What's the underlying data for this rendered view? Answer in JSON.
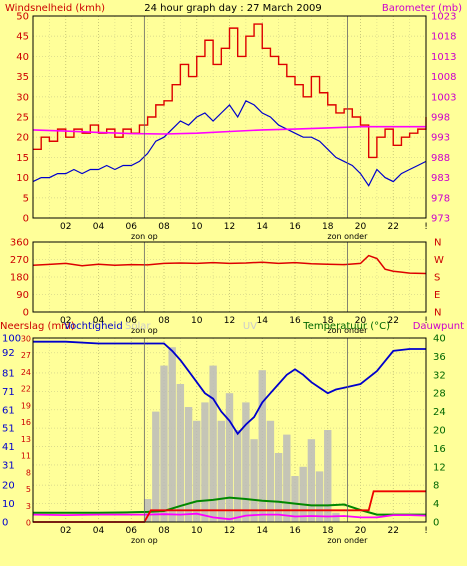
{
  "chart_data": [
    {
      "type": "line",
      "panel": "wind-barometer",
      "title": "24 hour graph day : 27 March 2009",
      "ylabel_left": "Windsnelheid (kmh)",
      "ylabel_right": "Barometer (mb)",
      "yticks_left": [
        0,
        5,
        10,
        15,
        20,
        25,
        30,
        35,
        40,
        45,
        50
      ],
      "yticks_right": [
        973,
        978,
        983,
        988,
        993,
        998,
        1003,
        1008,
        1013,
        1018,
        1023
      ],
      "ylim_left": [
        0,
        50
      ],
      "ylim_right": [
        973,
        1023
      ],
      "x_ticks": [
        "02",
        "04",
        "06",
        "08",
        "10",
        "12",
        "14",
        "16",
        "18",
        "20",
        "22",
        "!"
      ],
      "x_markers": [
        {
          "x": 6.8,
          "label": "zon op"
        },
        {
          "x": 19.2,
          "label": "zon onder"
        }
      ],
      "series": [
        {
          "key": "gust",
          "color": "#dd0000",
          "x": [
            0,
            0.5,
            1,
            1.5,
            2,
            2.5,
            3,
            3.5,
            4,
            4.5,
            5,
            5.5,
            6,
            6.5,
            7,
            7.5,
            8,
            8.5,
            9,
            9.5,
            10,
            10.5,
            11,
            11.5,
            12,
            12.5,
            13,
            13.5,
            14,
            14.5,
            15,
            15.5,
            16,
            16.5,
            17,
            17.5,
            18,
            18.5,
            19,
            19.5,
            20,
            20.5,
            21,
            21.5,
            22,
            22.5,
            23,
            23.5,
            24
          ],
          "values": [
            17,
            20,
            19,
            22,
            20,
            22,
            21,
            23,
            21,
            22,
            20,
            22,
            21,
            23,
            25,
            28,
            29,
            33,
            38,
            35,
            40,
            44,
            38,
            42,
            47,
            40,
            45,
            48,
            42,
            40,
            38,
            35,
            33,
            30,
            35,
            31,
            28,
            26,
            27,
            25,
            23,
            15,
            20,
            22,
            18,
            20,
            21,
            22,
            25
          ]
        },
        {
          "key": "average",
          "color": "#0000cc",
          "x": [
            0,
            0.5,
            1,
            1.5,
            2,
            2.5,
            3,
            3.5,
            4,
            4.5,
            5,
            5.5,
            6,
            6.5,
            7,
            7.5,
            8,
            8.5,
            9,
            9.5,
            10,
            10.5,
            11,
            11.5,
            12,
            12.5,
            13,
            13.5,
            14,
            14.5,
            15,
            15.5,
            16,
            16.5,
            17,
            17.5,
            18,
            18.5,
            19,
            19.5,
            20,
            20.5,
            21,
            21.5,
            22,
            22.5,
            23,
            23.5,
            24
          ],
          "values": [
            9,
            10,
            10,
            11,
            11,
            12,
            11,
            12,
            12,
            13,
            12,
            13,
            13,
            14,
            16,
            19,
            20,
            22,
            24,
            23,
            25,
            26,
            24,
            26,
            28,
            25,
            29,
            28,
            26,
            25,
            23,
            22,
            21,
            20,
            20,
            19,
            17,
            15,
            14,
            13,
            11,
            8,
            12,
            10,
            9,
            11,
            12,
            13,
            14
          ]
        },
        {
          "key": "barometer",
          "color": "#ff00ff",
          "axis": "right",
          "x": [
            0,
            2,
            4,
            6,
            8,
            10,
            12,
            14,
            16,
            18,
            20,
            22,
            24
          ],
          "values": [
            994.8,
            994.5,
            994.2,
            993.9,
            993.8,
            994.0,
            994.4,
            994.8,
            995.0,
            995.3,
            995.6,
            995.6,
            995.6
          ]
        }
      ]
    },
    {
      "type": "line",
      "panel": "wind-direction",
      "yticks_left": [
        0,
        90,
        180,
        270,
        360
      ],
      "yticks_right": [
        "N",
        "E",
        "S",
        "W",
        "N"
      ],
      "ylim": [
        0,
        360
      ],
      "x_ticks": [
        "02",
        "04",
        "06",
        "08",
        "10",
        "12",
        "14",
        "16",
        "18",
        "20",
        "22",
        "!"
      ],
      "x_markers": [
        {
          "x": 6.8,
          "label": "zon op"
        },
        {
          "x": 19.2,
          "label": "zon onder"
        }
      ],
      "series": [
        {
          "key": "direction",
          "color": "#dd0000",
          "x": [
            0,
            1,
            2,
            3,
            4,
            5,
            6,
            7,
            8,
            9,
            10,
            11,
            12,
            13,
            14,
            15,
            16,
            17,
            18,
            19,
            20,
            20.5,
            21,
            21.5,
            22,
            22.5,
            23,
            24
          ],
          "values": [
            240,
            245,
            250,
            238,
            246,
            240,
            244,
            242,
            250,
            252,
            250,
            254,
            250,
            252,
            256,
            250,
            254,
            248,
            246,
            244,
            250,
            290,
            275,
            220,
            210,
            205,
            200,
            198
          ]
        }
      ]
    },
    {
      "type": "line",
      "panel": "humidity-temperature",
      "labels": {
        "precip": "Neerslag (mm)",
        "humidity": "Vochtigheid",
        "solar": "Solar",
        "uv": "UV",
        "temperature": "Temperatuur (°C)",
        "dewpoint": "Dauwpunt"
      },
      "yticks_left": [
        0,
        10,
        20,
        31,
        41,
        51,
        61,
        71,
        81,
        92,
        100
      ],
      "yticks_left_inner": [
        0,
        3,
        5,
        8,
        11,
        13,
        16,
        19,
        22,
        24,
        27,
        30
      ],
      "yticks_right": [
        0,
        4,
        8,
        12,
        16,
        20,
        24,
        28,
        32,
        36,
        40
      ],
      "ylim_left": [
        0,
        100
      ],
      "ylim_right": [
        0,
        40
      ],
      "x_ticks": [
        "02",
        "04",
        "06",
        "08",
        "10",
        "12",
        "14",
        "16",
        "18",
        "20",
        "22",
        "!"
      ],
      "x_markers": [
        {
          "x": 6.8,
          "label": "zon op"
        },
        {
          "x": 19.2,
          "label": "zon onder"
        }
      ],
      "series": [
        {
          "key": "humidity",
          "color": "#0000cc",
          "axis": "left",
          "x": [
            0,
            2,
            4,
            6,
            7,
            8,
            8.5,
            9,
            9.5,
            10,
            10.5,
            11,
            11.5,
            12,
            12.5,
            13,
            13.5,
            14,
            14.5,
            15,
            15.5,
            16,
            16.5,
            17,
            17.5,
            18,
            18.5,
            19,
            20,
            21,
            22,
            23,
            24
          ],
          "values": [
            98,
            98,
            97,
            97,
            97,
            97,
            93,
            88,
            82,
            76,
            70,
            67,
            60,
            55,
            48,
            53,
            57,
            65,
            70,
            75,
            80,
            83,
            80,
            76,
            73,
            70,
            72,
            73,
            75,
            82,
            93,
            94,
            94
          ]
        },
        {
          "key": "temperature",
          "color": "#008800",
          "axis": "right",
          "x": [
            0,
            2,
            4,
            6,
            7,
            8,
            9,
            10,
            11,
            12,
            13,
            14,
            15,
            16,
            17,
            18,
            19,
            20,
            21,
            22,
            23,
            24
          ],
          "values": [
            2.0,
            2.0,
            2.0,
            2.1,
            2.2,
            2.4,
            3.5,
            4.5,
            4.8,
            5.3,
            5.0,
            4.6,
            4.4,
            4.0,
            3.6,
            3.6,
            3.8,
            2.6,
            1.6,
            1.6,
            1.6,
            1.6
          ]
        },
        {
          "key": "dewpoint",
          "color": "#ff00ff",
          "axis": "right",
          "x": [
            0,
            2,
            4,
            6,
            7,
            8,
            9,
            10,
            11,
            12,
            13,
            14,
            15,
            16,
            17,
            18,
            19,
            20,
            21,
            22,
            23,
            24
          ],
          "values": [
            1.6,
            1.5,
            1.6,
            1.6,
            1.6,
            1.7,
            1.6,
            1.8,
            1.0,
            0.6,
            1.4,
            1.6,
            1.6,
            1.2,
            1.3,
            1.2,
            1.3,
            1.0,
            1.0,
            1.5,
            1.5,
            1.4
          ]
        },
        {
          "key": "precip",
          "color": "#ee0000",
          "axis": "left_inner",
          "x": [
            0,
            6.8,
            7.2,
            20.5,
            20.8,
            24
          ],
          "values": [
            0,
            0,
            1.9,
            1.9,
            5.0,
            5.0
          ]
        },
        {
          "key": "solar",
          "color": "#bbbbbb",
          "type": "bar",
          "axis": "right",
          "x": [
            7.0,
            7.5,
            8.0,
            8.5,
            9.0,
            9.5,
            10.0,
            10.5,
            11.0,
            11.5,
            12.0,
            12.5,
            13.0,
            13.5,
            14.0,
            14.5,
            15.0,
            15.5,
            16.0,
            16.5,
            17.0,
            17.5,
            18.0,
            18.5
          ],
          "values": [
            5,
            24,
            34,
            38,
            30,
            25,
            22,
            26,
            34,
            22,
            28,
            20,
            26,
            18,
            33,
            22,
            15,
            19,
            10,
            12,
            18,
            11,
            20,
            2
          ]
        }
      ]
    }
  ]
}
